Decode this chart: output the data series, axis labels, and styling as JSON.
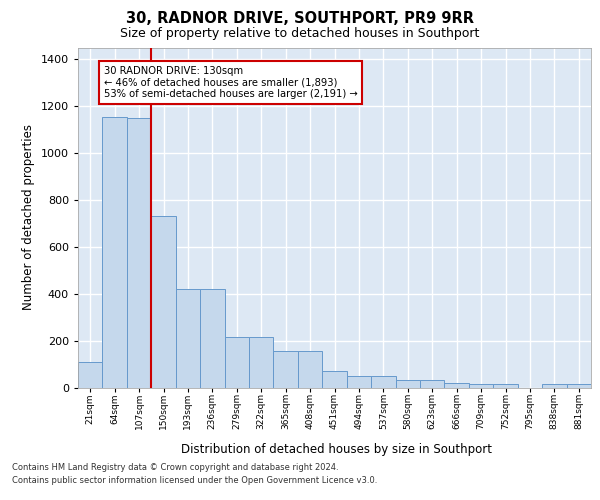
{
  "title1": "30, RADNOR DRIVE, SOUTHPORT, PR9 9RR",
  "title2": "Size of property relative to detached houses in Southport",
  "xlabel": "Distribution of detached houses by size in Southport",
  "ylabel": "Number of detached properties",
  "footer1": "Contains HM Land Registry data © Crown copyright and database right 2024.",
  "footer2": "Contains public sector information licensed under the Open Government Licence v3.0.",
  "categories": [
    "21sqm",
    "64sqm",
    "107sqm",
    "150sqm",
    "193sqm",
    "236sqm",
    "279sqm",
    "322sqm",
    "365sqm",
    "408sqm",
    "451sqm",
    "494sqm",
    "537sqm",
    "580sqm",
    "623sqm",
    "666sqm",
    "709sqm",
    "752sqm",
    "795sqm",
    "838sqm",
    "881sqm"
  ],
  "bar_values": [
    110,
    1155,
    1150,
    730,
    420,
    420,
    215,
    215,
    155,
    155,
    72,
    48,
    48,
    32,
    32,
    20,
    15,
    15,
    0,
    15,
    15
  ],
  "bar_color": "#c5d8ec",
  "bar_edge_color": "#6699cc",
  "vline_x": 2.5,
  "vline_color": "#cc0000",
  "annotation_line1": "30 RADNOR DRIVE: 130sqm",
  "annotation_line2": "← 46% of detached houses are smaller (1,893)",
  "annotation_line3": "53% of semi-detached houses are larger (2,191) →",
  "ylim": [
    0,
    1450
  ],
  "yticks": [
    0,
    200,
    400,
    600,
    800,
    1000,
    1200,
    1400
  ],
  "bg_color": "#dde8f4",
  "grid_color": "#ffffff",
  "grid_lw": 1.0
}
